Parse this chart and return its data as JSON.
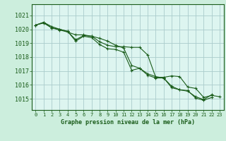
{
  "title": "Graphe pression niveau de la mer (hPa)",
  "background_color": "#cceedd",
  "plot_bg_color": "#ddf5f0",
  "grid_color": "#aacccc",
  "line_color": "#1a5c1a",
  "spine_color": "#1a5c1a",
  "ylim": [
    1014.2,
    1021.8
  ],
  "yticks": [
    1015,
    1016,
    1017,
    1018,
    1019,
    1020,
    1021
  ],
  "xticks": [
    0,
    1,
    2,
    3,
    4,
    5,
    6,
    7,
    8,
    9,
    10,
    11,
    12,
    13,
    14,
    15,
    16,
    17,
    18,
    19,
    20,
    21,
    22,
    23
  ],
  "series1": [
    1020.3,
    1020.5,
    1020.2,
    1020.0,
    1019.85,
    1019.25,
    1019.55,
    1019.5,
    1019.1,
    1018.85,
    1018.75,
    1018.75,
    1018.7,
    1018.7,
    1018.15,
    1016.55,
    1016.55,
    1016.65,
    1016.6,
    1015.85,
    1015.75,
    1015.1,
    1015.25,
    1015.15
  ],
  "series2": [
    1020.3,
    1020.45,
    1020.1,
    1019.95,
    1019.8,
    1019.6,
    1019.6,
    1019.5,
    1019.35,
    1019.15,
    1018.85,
    1018.65,
    1017.4,
    1017.2,
    1016.7,
    1016.5,
    1016.5,
    1015.9,
    1015.65,
    1015.55,
    1015.15,
    1014.95,
    1015.3,
    null
  ],
  "series3": [
    1020.3,
    1020.5,
    1020.1,
    1020.0,
    1019.85,
    1019.15,
    1019.5,
    1019.4,
    1018.9,
    1018.6,
    1018.55,
    1018.35,
    1017.05,
    1017.2,
    1016.8,
    1016.6,
    1016.5,
    1015.8,
    1015.65,
    1015.6,
    1015.05,
    1014.9,
    1015.1,
    null
  ]
}
